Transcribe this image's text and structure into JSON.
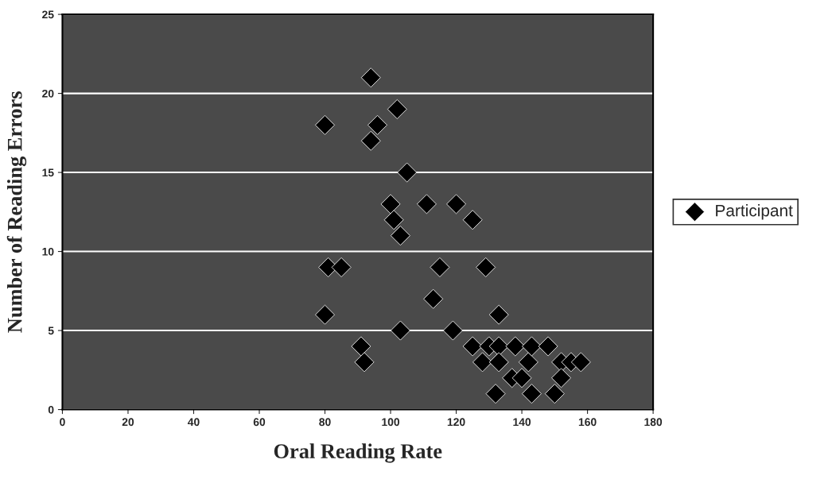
{
  "chart_data": {
    "type": "scatter",
    "xlabel": "Oral Reading Rate",
    "ylabel": "Number of Reading Errors",
    "xlim": [
      0,
      180
    ],
    "xticks": [
      0,
      20,
      40,
      60,
      80,
      100,
      120,
      140,
      160,
      180
    ],
    "ylim": [
      0,
      25
    ],
    "yticks": [
      0,
      5,
      10,
      15,
      20,
      25
    ],
    "grid": "y",
    "legend": "right",
    "marker": "diamond",
    "series": [
      {
        "name": "Participant",
        "color": "#000000",
        "x": [
          94,
          80,
          102,
          96,
          94,
          105,
          100,
          111,
          120,
          101,
          125,
          103,
          81,
          85,
          115,
          129,
          113,
          80,
          133,
          103,
          119,
          91,
          92,
          125,
          128,
          130,
          133,
          133,
          137,
          138,
          140,
          142,
          143,
          148,
          152,
          152,
          155,
          158,
          132,
          143,
          150
        ],
        "values": [
          21,
          18,
          19,
          18,
          17,
          15,
          13,
          13,
          13,
          12,
          12,
          11,
          9,
          9,
          9,
          9,
          7,
          6,
          6,
          5,
          5,
          4,
          3,
          4,
          3,
          4,
          4,
          3,
          2,
          4,
          2,
          3,
          4,
          4,
          3,
          2,
          3,
          3,
          1,
          1,
          1
        ]
      }
    ]
  }
}
